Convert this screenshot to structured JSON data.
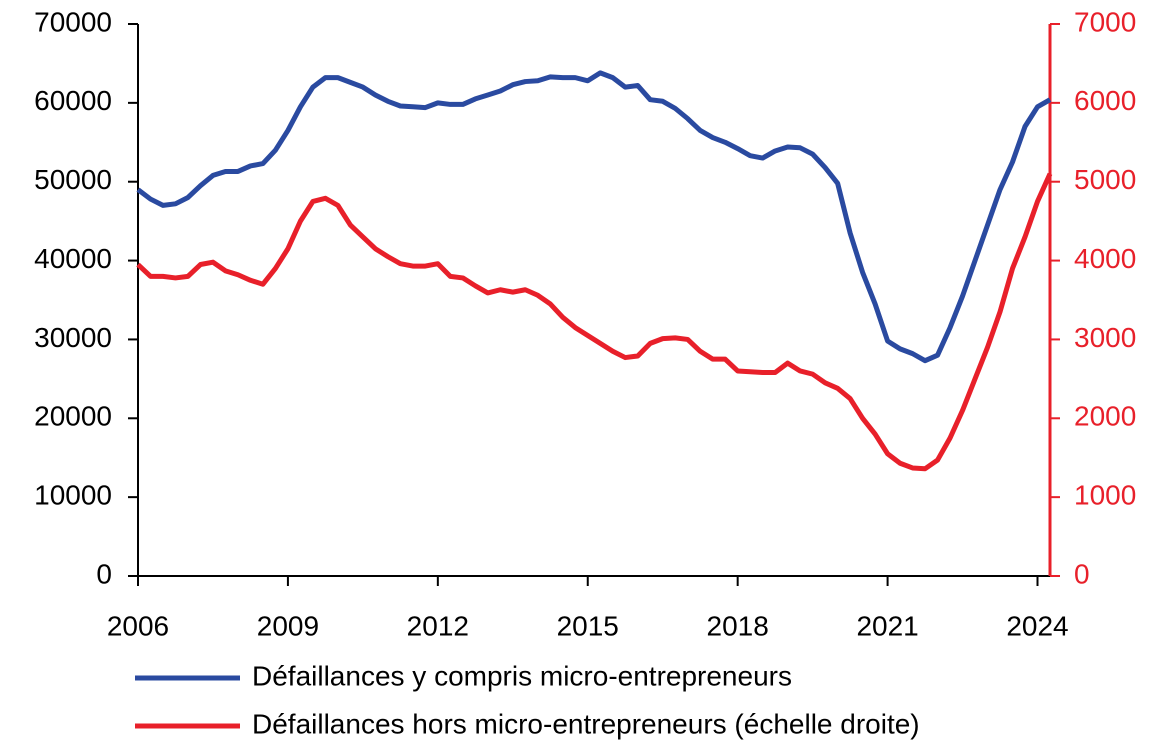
{
  "chart_data": {
    "type": "line",
    "x": [
      2006,
      2006.25,
      2006.5,
      2006.75,
      2007,
      2007.25,
      2007.5,
      2007.75,
      2008,
      2008.25,
      2008.5,
      2008.75,
      2009,
      2009.25,
      2009.5,
      2009.75,
      2010,
      2010.25,
      2010.5,
      2010.75,
      2011,
      2011.25,
      2011.5,
      2011.75,
      2012,
      2012.25,
      2012.5,
      2012.75,
      2013,
      2013.25,
      2013.5,
      2013.75,
      2014,
      2014.25,
      2014.5,
      2014.75,
      2015,
      2015.25,
      2015.5,
      2015.75,
      2016,
      2016.25,
      2016.5,
      2016.75,
      2017,
      2017.25,
      2017.5,
      2017.75,
      2018,
      2018.25,
      2018.5,
      2018.75,
      2019,
      2019.25,
      2019.5,
      2019.75,
      2020,
      2020.25,
      2020.5,
      2020.75,
      2021,
      2021.25,
      2021.5,
      2021.75,
      2022,
      2022.25,
      2022.5,
      2022.75,
      2023,
      2023.25,
      2023.5,
      2023.75,
      2024,
      2024.25
    ],
    "series": [
      {
        "name": "Défaillances y compris micro-entrepreneurs",
        "color": "#2a4aa0",
        "values": [
          49000,
          47800,
          47000,
          47200,
          48000,
          49500,
          50800,
          51300,
          51300,
          52000,
          52300,
          54000,
          56500,
          59500,
          62000,
          63200,
          63200,
          62600,
          62000,
          61000,
          60200,
          59600,
          59500,
          59400,
          60000,
          59800,
          59800,
          60500,
          61000,
          61500,
          62300,
          62700,
          62800,
          63300,
          63200,
          63200,
          62800,
          63800,
          63200,
          62000,
          62200,
          60400,
          60200,
          59300,
          58000,
          56500,
          55600,
          55000,
          54200,
          53300,
          53000,
          53900,
          54400,
          54300,
          53500,
          51800,
          49800,
          43500,
          38500,
          34500,
          29800,
          28800,
          28200,
          27300,
          28000,
          31500,
          35500,
          40000,
          44500,
          49000,
          52500,
          57000,
          59500,
          60400
        ]
      },
      {
        "name": "Défaillances hors micro-entrepreneurs (échelle droite)",
        "color": "#e8202a",
        "axis": "y2",
        "values": [
          3950,
          3800,
          3800,
          3780,
          3800,
          3950,
          3980,
          3870,
          3820,
          3750,
          3700,
          3900,
          4150,
          4500,
          4750,
          4790,
          4700,
          4450,
          4300,
          4150,
          4050,
          3960,
          3930,
          3930,
          3960,
          3800,
          3780,
          3680,
          3590,
          3630,
          3600,
          3630,
          3560,
          3450,
          3280,
          3150,
          3050,
          2950,
          2850,
          2770,
          2790,
          2950,
          3010,
          3020,
          3000,
          2850,
          2750,
          2750,
          2600,
          2590,
          2580,
          2580,
          2700,
          2600,
          2560,
          2450,
          2380,
          2250,
          2000,
          1800,
          1550,
          1430,
          1370,
          1360,
          1470,
          1750,
          2100,
          2500,
          2900,
          3350,
          3900,
          4300,
          4750,
          5100
        ]
      }
    ],
    "xlim": [
      2006,
      2024.25
    ],
    "xticks": [
      2006,
      2009,
      2012,
      2015,
      2018,
      2021,
      2024
    ],
    "ylim": [
      0,
      70000
    ],
    "yticks": [
      0,
      10000,
      20000,
      30000,
      40000,
      50000,
      60000,
      70000
    ],
    "y2lim": [
      0,
      7000
    ],
    "y2ticks": [
      0,
      1000,
      2000,
      3000,
      4000,
      5000,
      6000,
      7000
    ],
    "y2color": "#e8202a",
    "grid": false
  }
}
